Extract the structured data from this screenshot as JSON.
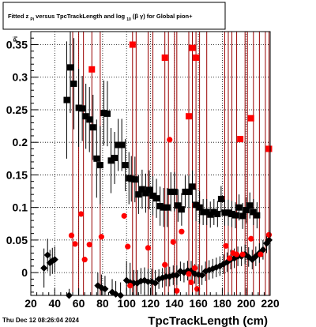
{
  "chart_data": {
    "type": "scatter",
    "title": {
      "prefix": "Fitted  z",
      "sub1": "Pi",
      "middle": "  versus TpcTrackLength and log",
      "sub2": "10",
      "suffix": " (β  γ) for Global pion+"
    },
    "xlabel": "TpcTrackLength (cm)",
    "ylabel": "Pi",
    "timestamp": "Thu Dec 12 08:26:04 2024",
    "xlim": [
      20,
      220
    ],
    "ylim": [
      -0.035,
      0.37
    ],
    "grid": true,
    "x_ticks": [
      20,
      40,
      60,
      80,
      100,
      120,
      140,
      160,
      180,
      200,
      220
    ],
    "y_ticks": [
      0,
      0.05,
      0.1,
      0.15,
      0.2,
      0.25,
      0.3,
      0.35
    ],
    "y_tick_labels": [
      "0",
      "0.05",
      "0.1",
      "0.15",
      "0.2",
      "0.25",
      "0.3",
      "0.35"
    ],
    "colors": {
      "red": "#ff0000",
      "dark_red": "#990000",
      "black": "#000000"
    },
    "vertical_lines_x": [
      55,
      60,
      64,
      71,
      78,
      105,
      108,
      118,
      122,
      132,
      135,
      140,
      142,
      152,
      155,
      158,
      161,
      167,
      182,
      185,
      188,
      192,
      199,
      201,
      206,
      211,
      216,
      219
    ],
    "series": [
      {
        "marker": "square-black",
        "points": [
          [
            50,
            0.265,
            0.09
          ],
          [
            53,
            0.315,
            0.07
          ],
          [
            56,
            0.29,
            0.07
          ],
          [
            60,
            0.253,
            0.06
          ],
          [
            63,
            0.252,
            0.05
          ],
          [
            66,
            0.24,
            0.05
          ],
          [
            69,
            0.235,
            0.05
          ],
          [
            72,
            0.223,
            0.05
          ],
          [
            75,
            0.175,
            0.06
          ],
          [
            78,
            0.165,
            0.06
          ],
          [
            81,
            0.245,
            0.05
          ],
          [
            84,
            0.244,
            0.05
          ],
          [
            87,
            0.172,
            0.05
          ],
          [
            90,
            0.176,
            0.04
          ],
          [
            93,
            0.196,
            0.04
          ],
          [
            96,
            0.196,
            0.04
          ],
          [
            99,
            0.165,
            0.04
          ],
          [
            102,
            0.145,
            0.04
          ],
          [
            104,
            0.144,
            0.035
          ],
          [
            107,
            0.143,
            0.035
          ],
          [
            110,
            0.12,
            0.03
          ],
          [
            113,
            0.128,
            0.03
          ],
          [
            116,
            0.122,
            0.03
          ],
          [
            119,
            0.127,
            0.03
          ],
          [
            122,
            0.118,
            0.03
          ],
          [
            125,
            0.114,
            0.03
          ],
          [
            128,
            0.102,
            0.03
          ],
          [
            131,
            0.1,
            0.03
          ],
          [
            134,
            0.1,
            0.03
          ],
          [
            137,
            0.124,
            0.03
          ],
          [
            140,
            0.124,
            0.03
          ],
          [
            143,
            0.103,
            0.025
          ],
          [
            146,
            0.097,
            0.025
          ],
          [
            149,
            0.124,
            0.025
          ],
          [
            152,
            0.124,
            0.025
          ],
          [
            155,
            0.132,
            0.025
          ],
          [
            158,
            0.104,
            0.025
          ],
          [
            161,
            0.1,
            0.025
          ],
          [
            164,
            0.093,
            0.02
          ],
          [
            167,
            0.093,
            0.02
          ],
          [
            170,
            0.089,
            0.02
          ],
          [
            173,
            0.093,
            0.02
          ],
          [
            176,
            0.09,
            0.02
          ],
          [
            179,
            0.113,
            0.02
          ],
          [
            182,
            0.092,
            0.02
          ],
          [
            185,
            0.092,
            0.02
          ],
          [
            188,
            0.09,
            0.02
          ],
          [
            191,
            0.088,
            0.02
          ],
          [
            194,
            0.1,
            0.02
          ],
          [
            197,
            0.087,
            0.02
          ],
          [
            200,
            0.096,
            0.02
          ],
          [
            203,
            0.103,
            0.02
          ],
          [
            206,
            0.093,
            0.02
          ],
          [
            209,
            0.088,
            0.02
          ]
        ]
      },
      {
        "marker": "diamond-black",
        "points": [
          [
            31,
            0.007,
            0.03
          ],
          [
            34,
            0.027,
            0.025
          ],
          [
            36,
            0.015,
            0.02
          ],
          [
            38,
            0.018,
            0.02
          ],
          [
            40,
            0.02,
            0.02
          ],
          [
            52,
            -0.035,
            0.01
          ],
          [
            76,
            -0.02,
            0.02
          ],
          [
            79,
            -0.023,
            0.02
          ],
          [
            82,
            -0.025,
            0.02
          ],
          [
            88,
            -0.03,
            0.02
          ],
          [
            91,
            -0.033,
            0.02
          ],
          [
            95,
            -0.035,
            0.02
          ],
          [
            100,
            -0.012,
            0.03
          ],
          [
            103,
            -0.015,
            0.03
          ],
          [
            106,
            -0.016,
            0.02
          ],
          [
            109,
            -0.016,
            0.02
          ],
          [
            112,
            -0.013,
            0.02
          ],
          [
            115,
            -0.012,
            0.02
          ],
          [
            118,
            -0.014,
            0.02
          ],
          [
            121,
            -0.014,
            0.02
          ],
          [
            124,
            -0.016,
            0.02
          ],
          [
            127,
            -0.01,
            0.015
          ],
          [
            130,
            -0.008,
            0.015
          ],
          [
            133,
            -0.006,
            0.015
          ],
          [
            136,
            -0.006,
            0.015
          ],
          [
            139,
            -0.004,
            0.015
          ],
          [
            142,
            -0.004,
            0.015
          ],
          [
            145,
            0.002,
            0.015
          ],
          [
            148,
            0.0,
            0.015
          ],
          [
            151,
            0.003,
            0.015
          ],
          [
            154,
            0.003,
            0.015
          ],
          [
            157,
            -0.002,
            0.015
          ],
          [
            160,
            -0.003,
            0.015
          ],
          [
            163,
            -0.004,
            0.015
          ],
          [
            166,
            0.002,
            0.015
          ],
          [
            169,
            0.004,
            0.015
          ],
          [
            172,
            0.006,
            0.015
          ],
          [
            175,
            0.008,
            0.015
          ],
          [
            178,
            0.01,
            0.015
          ],
          [
            181,
            0.013,
            0.015
          ],
          [
            184,
            0.016,
            0.015
          ],
          [
            187,
            0.02,
            0.015
          ],
          [
            190,
            0.022,
            0.015
          ],
          [
            193,
            0.025,
            0.015
          ],
          [
            196,
            0.025,
            0.015
          ],
          [
            199,
            0.028,
            0.015
          ],
          [
            202,
            0.024,
            0.015
          ],
          [
            205,
            0.02,
            0.015
          ],
          [
            208,
            0.025,
            0.015
          ],
          [
            211,
            0.03,
            0.015
          ],
          [
            214,
            0.035,
            0.015
          ],
          [
            217,
            0.045,
            0.015
          ],
          [
            219,
            0.05,
            0.015
          ]
        ]
      },
      {
        "marker": "square-red",
        "points": [
          [
            71,
            0.312
          ],
          [
            105,
            0.35
          ],
          [
            132,
            0.33
          ],
          [
            152,
            0.24
          ],
          [
            155,
            0.345
          ],
          [
            158,
            0.33
          ],
          [
            195,
            0.205
          ],
          [
            204,
            0.237
          ],
          [
            219,
            0.19
          ]
        ]
      },
      {
        "marker": "circle-red",
        "points": [
          [
            54,
            0.057
          ],
          [
            57,
            0.044
          ],
          [
            62,
            0.09
          ],
          [
            65,
            0.02
          ],
          [
            69,
            0.043
          ],
          [
            79,
            0.055
          ],
          [
            98,
            0.087
          ],
          [
            101,
            0.04
          ],
          [
            103,
            -0.02
          ],
          [
            118,
            0.038
          ],
          [
            132,
            0.012
          ],
          [
            136,
            0.204
          ],
          [
            139,
            0.047
          ],
          [
            142,
            -0.028
          ],
          [
            146,
            0.063
          ],
          [
            152,
            -0.002
          ],
          [
            154,
            -0.015
          ],
          [
            157,
            0.007
          ],
          [
            159,
            -0.025
          ],
          [
            183,
            0.041
          ],
          [
            186,
            0.022
          ],
          [
            189,
            0.03
          ],
          [
            192,
            0.028
          ],
          [
            197,
            0.028
          ],
          [
            204,
            0.052
          ],
          [
            212,
            0.028
          ],
          [
            219,
            0.058
          ]
        ]
      }
    ]
  }
}
